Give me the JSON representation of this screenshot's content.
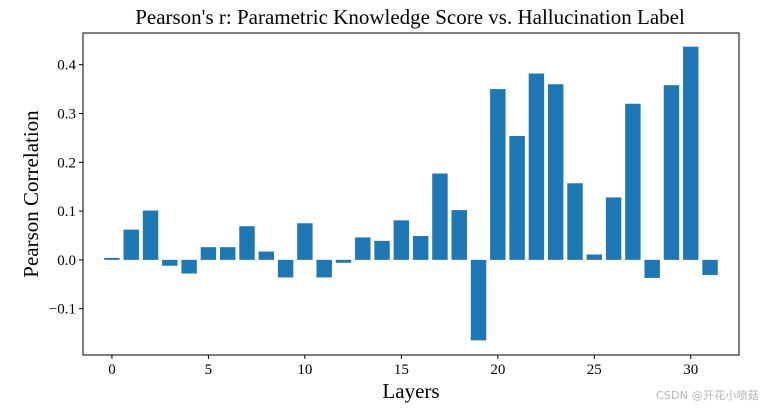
{
  "chart_data": {
    "type": "bar",
    "title": "Pearson's r: Parametric Knowledge Score vs. Hallucination Label",
    "xlabel": "Layers",
    "ylabel": "Pearson Correlation",
    "x": [
      0,
      1,
      2,
      3,
      4,
      5,
      6,
      7,
      8,
      9,
      10,
      11,
      12,
      13,
      14,
      15,
      16,
      17,
      18,
      19,
      20,
      21,
      22,
      23,
      24,
      25,
      26,
      27,
      28,
      29,
      30,
      31
    ],
    "values": [
      0.004,
      0.062,
      0.101,
      -0.012,
      -0.028,
      0.026,
      0.026,
      0.069,
      0.017,
      -0.036,
      0.075,
      -0.036,
      -0.006,
      0.046,
      0.039,
      0.081,
      0.049,
      0.177,
      0.102,
      -0.165,
      0.35,
      0.254,
      0.382,
      0.36,
      0.157,
      0.011,
      0.128,
      0.32,
      -0.037,
      0.358,
      0.437,
      -0.031
    ],
    "xlim": [
      -1.5,
      32.5
    ],
    "ylim": [
      -0.195,
      0.465
    ],
    "xticks": [
      0,
      5,
      10,
      15,
      20,
      25,
      30
    ],
    "xtick_labels": [
      "0",
      "5",
      "10",
      "15",
      "20",
      "25",
      "30"
    ],
    "yticks": [
      -0.1,
      0.0,
      0.1,
      0.2,
      0.3,
      0.4
    ],
    "ytick_labels": [
      "−0.1",
      "0.0",
      "0.1",
      "0.2",
      "0.3",
      "0.4"
    ],
    "grid": false,
    "bar_color": "#1f77b4"
  },
  "watermark": "CSDN @开花小喷菇"
}
